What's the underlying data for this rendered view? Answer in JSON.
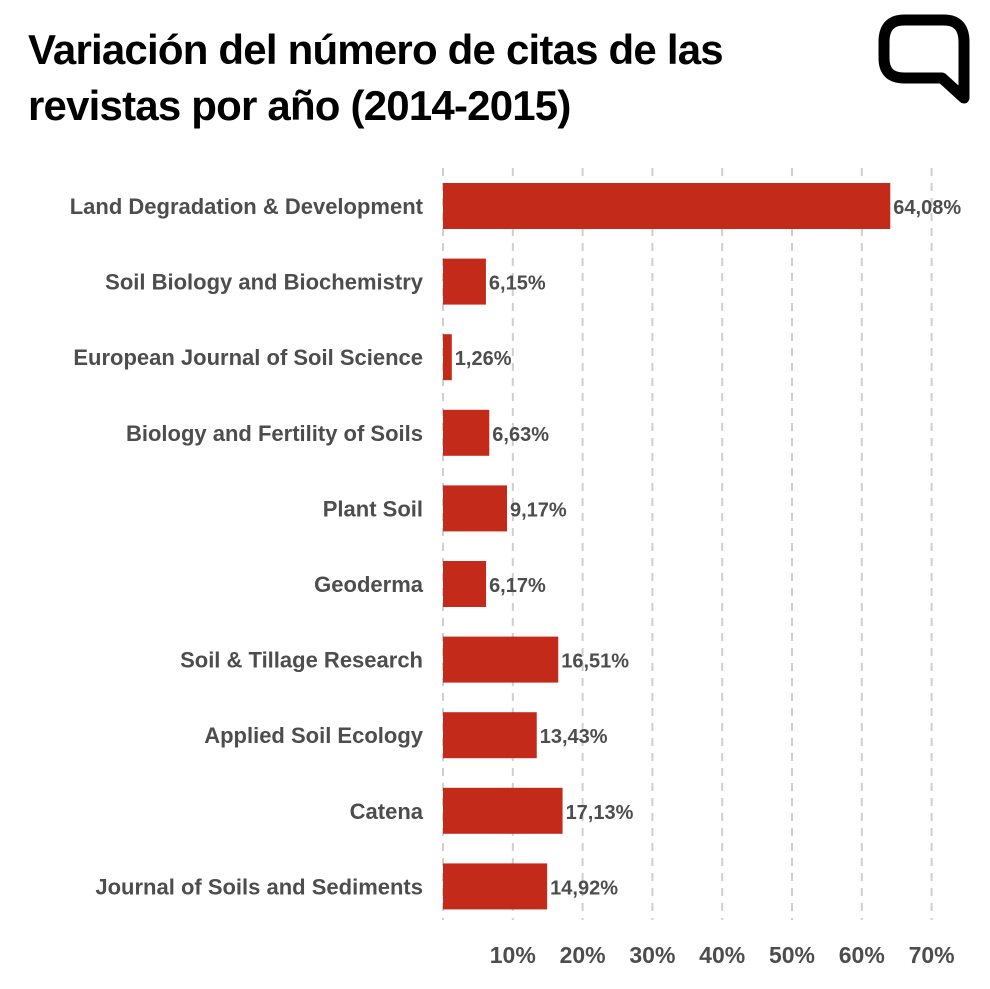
{
  "title": "Variación del número de citas de las revistas por año (2014-2015)",
  "logo": {
    "icon": "speech-bubble-logo-icon",
    "color": "#000000"
  },
  "colors": {
    "bar": "#c42a1a",
    "text": "#4d4d4d",
    "grid": "#cfcfcf"
  },
  "chart_data": {
    "type": "bar",
    "orientation": "horizontal",
    "title": "Variación del número de citas de las revistas por año (2014-2015)",
    "xlabel": "",
    "ylabel": "",
    "xlim": [
      0,
      70
    ],
    "grid": true,
    "categories": [
      "Land Degradation & Development",
      "Soil Biology and Biochemistry",
      "European Journal of Soil Science",
      "Biology and Fertility of Soils",
      "Plant Soil",
      "Geoderma",
      "Soil & Tillage Research",
      "Applied Soil Ecology",
      "Catena",
      "Journal of Soils and Sediments"
    ],
    "values": [
      64.08,
      6.15,
      1.26,
      6.63,
      9.17,
      6.17,
      16.51,
      13.43,
      17.13,
      14.92
    ],
    "value_labels": [
      "64,08%",
      "6,15%",
      "1,26%",
      "6,63%",
      "9,17%",
      "6,17%",
      "16,51%",
      "13,43%",
      "17,13%",
      "14,92%"
    ],
    "ticks": [
      10,
      20,
      30,
      40,
      50,
      60,
      70
    ],
    "tick_labels": [
      "10%",
      "20%",
      "30%",
      "40%",
      "50%",
      "60%",
      "70%"
    ]
  }
}
